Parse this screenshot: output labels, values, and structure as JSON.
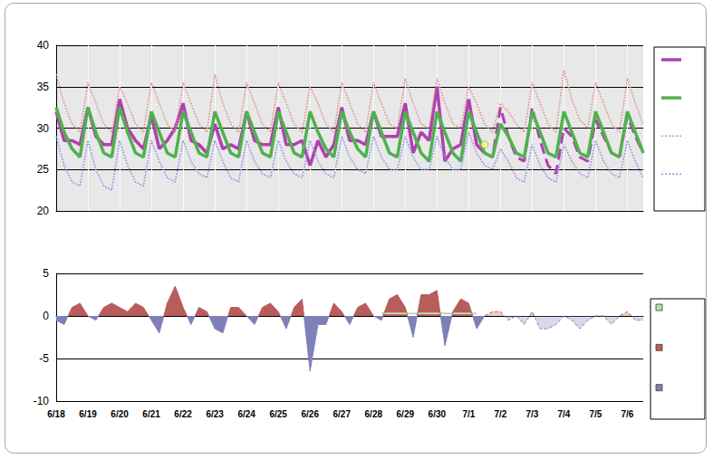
{
  "chart_data": [
    {
      "type": "line",
      "tick_labels": "y",
      "grid": true,
      "legend": "right",
      "categories": [
        "6/18",
        null,
        null,
        null,
        "6/19",
        null,
        null,
        null,
        "6/20",
        null,
        null,
        null,
        "6/21",
        null,
        null,
        null,
        "6/22",
        null,
        null,
        null,
        "6/23",
        null,
        null,
        null,
        "6/24",
        null,
        null,
        null,
        "6/25",
        null,
        null,
        null,
        "6/26",
        null,
        null,
        null,
        "6/27",
        null,
        null,
        null,
        "6/28",
        null,
        null,
        null,
        "6/29",
        null,
        null,
        null,
        "6/30",
        null,
        null,
        null,
        "7/1",
        null,
        null,
        null,
        "7/2",
        null,
        null,
        null,
        "7/3",
        null,
        null,
        null,
        "7/4",
        null,
        null,
        null,
        "7/5",
        null,
        null,
        null,
        "7/6",
        null,
        null
      ],
      "ylim": [
        20,
        40
      ],
      "yticks": [
        20,
        25,
        30,
        35,
        40
      ],
      "series": [
        {
          "color": "#b040b0",
          "line_style": "solid",
          "marker": "none",
          "values": [
            32,
            28.5,
            28.5,
            28,
            32.5,
            29,
            28,
            28,
            33.5,
            30,
            28.5,
            27.5,
            31.5,
            27.5,
            28.5,
            30,
            33,
            28.5,
            28,
            27,
            30.5,
            27.5,
            28,
            27.5,
            32,
            28.5,
            28,
            28,
            32.5,
            28,
            28,
            28.5,
            25.5,
            28.5,
            26.5,
            28,
            32.5,
            28.5,
            28.5,
            28,
            32,
            29,
            29,
            29,
            33,
            27,
            29.5,
            28.5,
            35,
            26,
            27.5,
            28,
            33.5,
            28,
            27,
            null,
            null,
            null,
            null,
            null,
            null,
            null,
            null,
            null,
            null,
            null,
            null,
            null,
            null,
            null,
            null,
            null,
            null,
            null,
            null
          ]
        },
        {
          "color": "#b040b0",
          "line_style": "dashed",
          "marker": "none",
          "values": [
            null,
            null,
            null,
            null,
            null,
            null,
            null,
            null,
            null,
            null,
            null,
            null,
            null,
            null,
            null,
            null,
            null,
            null,
            null,
            null,
            null,
            null,
            null,
            null,
            null,
            null,
            null,
            null,
            null,
            null,
            null,
            null,
            null,
            null,
            null,
            null,
            null,
            null,
            null,
            null,
            null,
            null,
            null,
            null,
            null,
            null,
            null,
            null,
            null,
            null,
            null,
            null,
            null,
            null,
            27,
            26.5,
            32.5,
            29,
            26.5,
            26,
            32.5,
            28.5,
            25.5,
            24.5,
            30,
            29,
            26.5,
            26,
            31,
            29,
            27,
            26.5,
            31.5,
            29,
            27
          ]
        },
        {
          "color": "#50b050",
          "line_style": "solid",
          "marker": "none",
          "values": [
            32.5,
            29.5,
            27.5,
            26.5,
            32.5,
            29.5,
            27,
            26.5,
            32.5,
            29.5,
            27,
            26.5,
            32,
            29.5,
            27,
            26.5,
            32,
            29.5,
            27,
            26.5,
            32,
            29.5,
            27,
            26.5,
            32,
            29.5,
            27,
            26.5,
            32,
            29.5,
            27,
            26.5,
            32,
            29.5,
            27.5,
            26.5,
            32,
            29.5,
            27.5,
            26.5,
            32,
            29.5,
            27,
            26.5,
            32,
            29.5,
            27,
            26,
            32,
            29.5,
            27,
            26,
            32,
            29.5,
            27,
            26.5,
            30.5,
            29,
            27,
            26.5,
            32,
            29.5,
            27,
            26.5,
            32,
            29.5,
            27,
            26.5,
            32,
            29.5,
            27,
            26.5,
            32,
            29.5,
            27
          ]
        },
        {
          "color": "#e09090",
          "line_style": "dotted",
          "marker": "none",
          "values": [
            36.5,
            33,
            30.5,
            29.5,
            35.5,
            33,
            30.5,
            29.5,
            35,
            33,
            30.5,
            29.5,
            35.5,
            33,
            30.5,
            29.5,
            35.5,
            33,
            30.5,
            29.5,
            36.5,
            33,
            30.5,
            29.5,
            35.5,
            33,
            30.5,
            29.5,
            35.5,
            33,
            30.5,
            29.5,
            35,
            33,
            30.5,
            29.5,
            35.5,
            33,
            30.5,
            29.5,
            35.5,
            33,
            30.5,
            30,
            36,
            33,
            30.5,
            30,
            36,
            33,
            30.5,
            30,
            35,
            33,
            30.5,
            29.5,
            33,
            32,
            30.5,
            29.5,
            35.5,
            33,
            30.5,
            29.5,
            37,
            33.5,
            31,
            30,
            35.5,
            33,
            30.5,
            29.5,
            36,
            33,
            30.5
          ]
        },
        {
          "color": "#9090e0",
          "line_style": "dotted",
          "marker": "none",
          "values": [
            29,
            25.5,
            23.5,
            23,
            28.5,
            25,
            23,
            22.5,
            28.5,
            25.5,
            23.5,
            23,
            28.5,
            26,
            24,
            23.5,
            28.5,
            26,
            24.5,
            24,
            28.5,
            26,
            24,
            23.5,
            28.5,
            26,
            24.5,
            24,
            28.5,
            26,
            24.5,
            24,
            28.5,
            26,
            24.5,
            24,
            29,
            26.5,
            25,
            24.5,
            29,
            26.5,
            25,
            25,
            29,
            26.5,
            25,
            25,
            29,
            26.5,
            25,
            25,
            29.5,
            27,
            25.5,
            25,
            27.5,
            26,
            24,
            23.5,
            28,
            25.5,
            24,
            23.5,
            28,
            26,
            24.5,
            24,
            28.5,
            26,
            24.5,
            24,
            28.5,
            26,
            24
          ]
        },
        {
          "type": "scatter",
          "color": "#ffff66",
          "marker": "circle",
          "values": [
            null,
            null,
            null,
            null,
            null,
            null,
            null,
            null,
            null,
            null,
            null,
            null,
            null,
            null,
            null,
            null,
            null,
            null,
            null,
            null,
            null,
            null,
            null,
            null,
            null,
            null,
            null,
            null,
            null,
            null,
            null,
            null,
            null,
            null,
            null,
            null,
            null,
            null,
            null,
            null,
            null,
            null,
            null,
            null,
            null,
            null,
            null,
            null,
            null,
            null,
            null,
            null,
            null,
            null,
            28,
            null,
            null,
            null,
            null,
            null,
            null,
            null,
            null,
            null,
            null,
            null,
            null,
            null,
            null,
            null,
            null,
            null,
            null,
            null,
            null
          ]
        }
      ]
    },
    {
      "type": "area",
      "grid": true,
      "legend": "right",
      "categories": [
        "6/18",
        null,
        null,
        null,
        "6/19",
        null,
        null,
        null,
        "6/20",
        null,
        null,
        null,
        "6/21",
        null,
        null,
        null,
        "6/22",
        null,
        null,
        null,
        "6/23",
        null,
        null,
        null,
        "6/24",
        null,
        null,
        null,
        "6/25",
        null,
        null,
        null,
        "6/26",
        null,
        null,
        null,
        "6/27",
        null,
        null,
        null,
        "6/28",
        null,
        null,
        null,
        "6/29",
        null,
        null,
        null,
        "6/30",
        null,
        null,
        null,
        "7/1",
        null,
        null,
        null,
        "7/2",
        null,
        null,
        null,
        "7/3",
        null,
        null,
        null,
        "7/4",
        null,
        null,
        null,
        "7/5",
        null,
        null,
        null,
        "7/6",
        null,
        null
      ],
      "ylim": [
        -10,
        5
      ],
      "yticks": [
        -10,
        -5,
        0,
        5
      ],
      "series": [
        {
          "type": "line",
          "color": "#b8dcb8",
          "line_style": "solid",
          "marker": "none",
          "values": [
            null,
            null,
            null,
            null,
            null,
            null,
            null,
            null,
            null,
            null,
            null,
            null,
            null,
            null,
            null,
            null,
            null,
            null,
            null,
            null,
            null,
            null,
            null,
            null,
            null,
            null,
            null,
            null,
            null,
            null,
            null,
            null,
            null,
            null,
            null,
            null,
            null,
            null,
            null,
            null,
            null,
            0.3,
            0.3,
            0.3,
            0.3,
            0.3,
            0.3,
            0.3,
            0.3,
            0.3,
            0.3,
            0.3,
            0.3,
            0.3,
            null,
            null,
            null,
            null,
            null,
            null,
            null,
            null,
            null,
            null,
            null,
            null,
            null,
            null,
            null,
            null,
            null,
            null,
            null,
            null,
            null
          ]
        },
        {
          "colors": [
            "#b85c5c",
            "#8080b8"
          ],
          "line_style": "solid",
          "marker": "none",
          "values": [
            -0.5,
            -1,
            1,
            1.5,
            0,
            -0.5,
            1,
            1.5,
            1,
            0.5,
            1.5,
            1,
            -0.5,
            -2,
            1.5,
            3.5,
            1,
            -1,
            1,
            0.5,
            -1.5,
            -2,
            1,
            1,
            0,
            -1,
            1,
            1.5,
            0.5,
            -1.5,
            1,
            2,
            -6.5,
            -1,
            -1,
            1.5,
            0.5,
            -1,
            1,
            1.5,
            0,
            -0.5,
            2,
            2.5,
            1,
            -2.5,
            2.5,
            2.5,
            3,
            -3.5,
            0.5,
            2,
            1.5,
            -1.5,
            0,
            null,
            null,
            null,
            null,
            null,
            null,
            null,
            null,
            null,
            null,
            null,
            null,
            null,
            null,
            null,
            null,
            null,
            null,
            null,
            null
          ]
        },
        {
          "colors": [
            "#b85c5c",
            "#8080b8"
          ],
          "line_style": "dashed",
          "marker": "none",
          "values": [
            null,
            null,
            null,
            null,
            null,
            null,
            null,
            null,
            null,
            null,
            null,
            null,
            null,
            null,
            null,
            null,
            null,
            null,
            null,
            null,
            null,
            null,
            null,
            null,
            null,
            null,
            null,
            null,
            null,
            null,
            null,
            null,
            null,
            null,
            null,
            null,
            null,
            null,
            null,
            null,
            null,
            null,
            null,
            null,
            null,
            null,
            null,
            null,
            null,
            null,
            null,
            null,
            null,
            null,
            0,
            0.5,
            0.5,
            -0.5,
            0,
            -1,
            0.5,
            -1.5,
            -1.5,
            -1,
            0,
            -0.5,
            -1.5,
            -0.5,
            0,
            0,
            -1,
            0,
            0.5,
            -0.5,
            -0.5
          ]
        }
      ]
    }
  ]
}
